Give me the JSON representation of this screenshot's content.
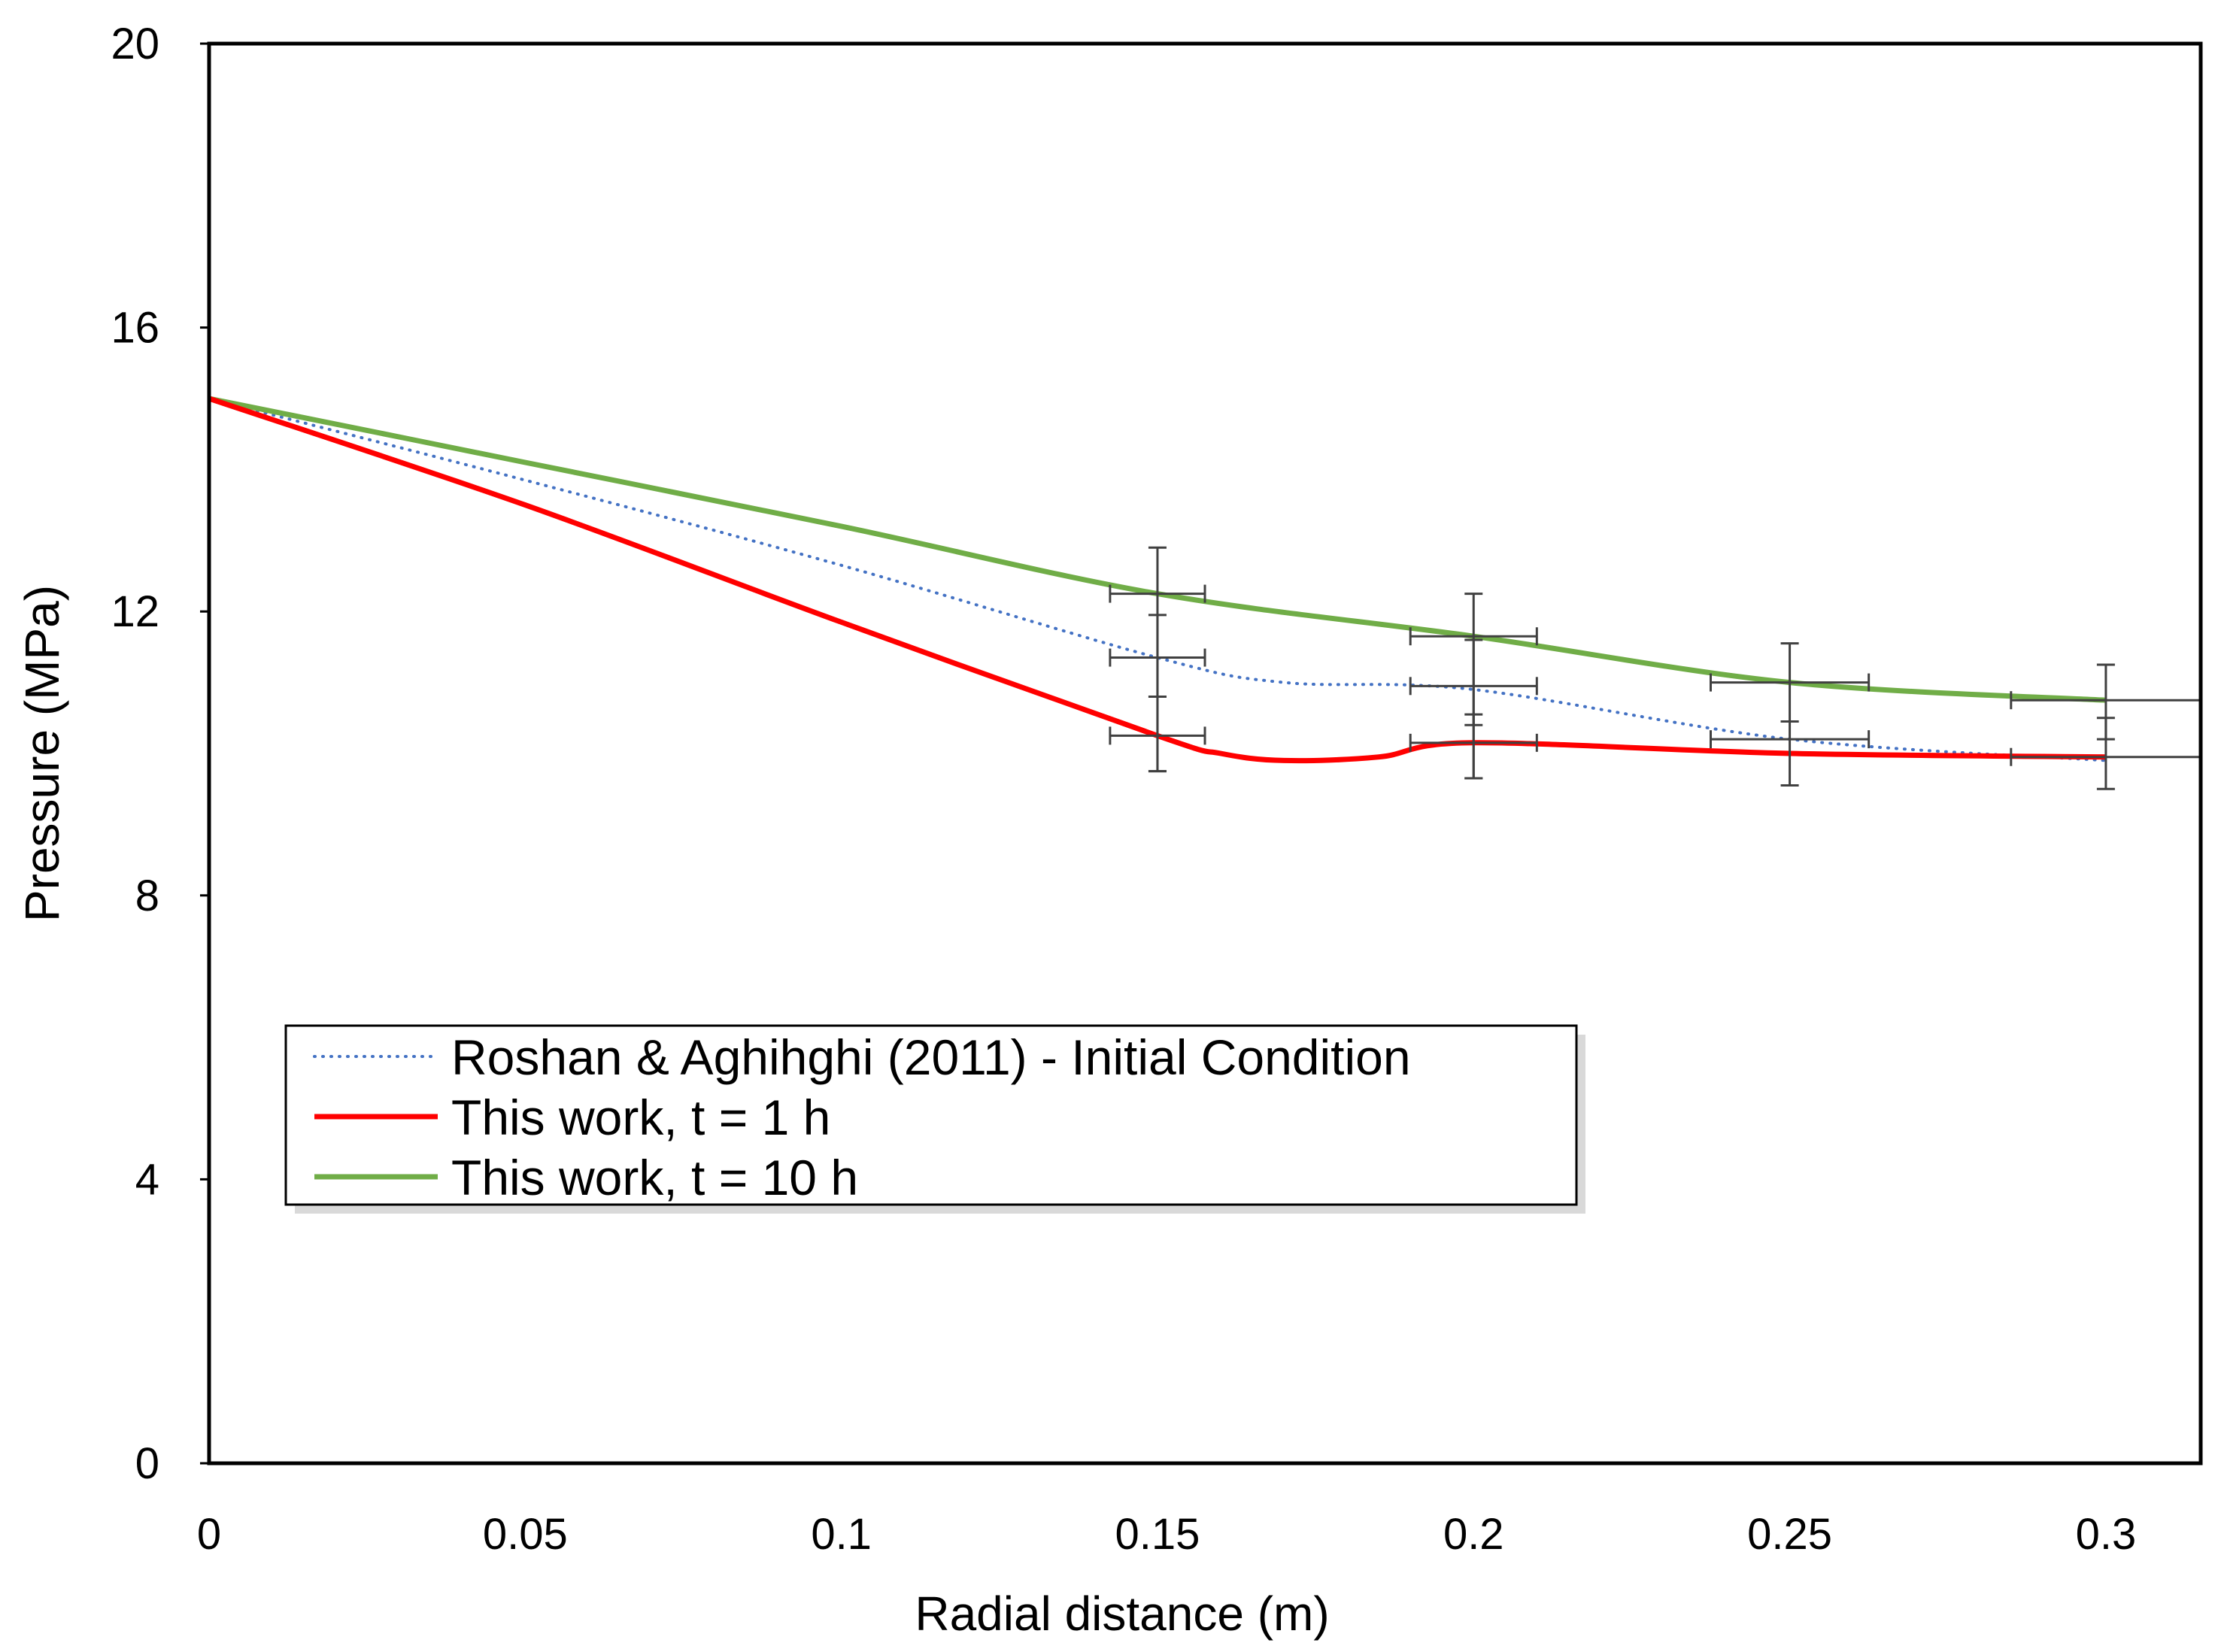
{
  "chart_data": {
    "type": "line",
    "title": "",
    "xlabel": "Radial distance (m)",
    "ylabel": "Pressure (MPa)",
    "xlim": [
      0,
      0.315
    ],
    "ylim": [
      0,
      20
    ],
    "x_ticks": [
      "0",
      "0.05",
      "0.1",
      "0.15",
      "0.2",
      "0.25",
      "0.3"
    ],
    "x_tick_values": [
      0,
      0.05,
      0.1,
      0.15,
      0.2,
      0.25,
      0.3
    ],
    "y_ticks": [
      "0",
      "4",
      "8",
      "12",
      "16",
      "20"
    ],
    "y_tick_values": [
      0,
      4,
      8,
      12,
      16,
      20
    ],
    "grid": false,
    "legend_position": "center-left",
    "series": [
      {
        "name": "Roshan & Aghihghi (2011) - Initial Condition",
        "color": "#4472c4",
        "style": "dotted",
        "x": [
          0,
          0.05,
          0.1,
          0.15,
          0.17,
          0.2,
          0.25,
          0.3
        ],
        "y": [
          15.0,
          13.85,
          12.65,
          11.35,
          11.0,
          10.9,
          10.2,
          9.9
        ]
      },
      {
        "name": "This work, t = 1 h",
        "color": "#ff0000",
        "style": "solid",
        "x": [
          0,
          0.05,
          0.1,
          0.15,
          0.16,
          0.17,
          0.185,
          0.2,
          0.25,
          0.3
        ],
        "y": [
          15.0,
          13.5,
          11.85,
          10.25,
          10.0,
          9.9,
          9.95,
          10.15,
          10.0,
          9.95
        ]
      },
      {
        "name": "This work, t = 10 h",
        "color": "#70ad47",
        "style": "solid",
        "x": [
          0,
          0.05,
          0.1,
          0.15,
          0.2,
          0.25,
          0.3
        ],
        "y": [
          15.0,
          14.1,
          13.2,
          12.25,
          11.65,
          11.0,
          10.75
        ]
      }
    ],
    "error_bars": [
      {
        "x": 0.15,
        "y": 12.25,
        "xerr": 0.0075,
        "ylow": 10.8,
        "yhigh": 12.9
      },
      {
        "x": 0.15,
        "y": 11.35,
        "xerr": 0.0075,
        "ylow": 9.75,
        "yhigh": 11.95
      },
      {
        "x": 0.15,
        "y": 10.25,
        "xerr": 0.0075,
        "ylow": 9.75,
        "yhigh": 10.8
      },
      {
        "x": 0.2,
        "y": 11.65,
        "xerr": 0.01,
        "ylow": 10.4,
        "yhigh": 12.25
      },
      {
        "x": 0.2,
        "y": 10.95,
        "xerr": 0.01,
        "ylow": 9.65,
        "yhigh": 11.6
      },
      {
        "x": 0.2,
        "y": 10.15,
        "xerr": 0.01,
        "ylow": 9.65,
        "yhigh": 10.55
      },
      {
        "x": 0.25,
        "y": 11.0,
        "xerr": 0.0125,
        "ylow": 10.45,
        "yhigh": 11.55
      },
      {
        "x": 0.25,
        "y": 10.2,
        "xerr": 0.0125,
        "ylow": 9.55,
        "yhigh": 10.45
      },
      {
        "x": 0.3,
        "y": 10.75,
        "xerr": 0.015,
        "ylow": 10.2,
        "yhigh": 11.25
      },
      {
        "x": 0.3,
        "y": 9.95,
        "xerr": 0.015,
        "ylow": 9.5,
        "yhigh": 10.5
      }
    ],
    "error_bar_color": "#404040"
  }
}
